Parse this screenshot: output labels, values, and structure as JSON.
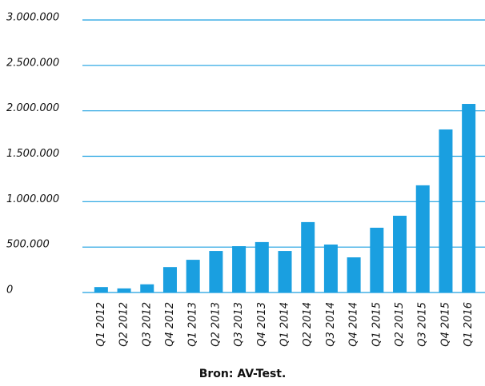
{
  "chart_data": {
    "type": "bar",
    "categories": [
      "Q1 2012",
      "Q2 2012",
      "Q3 2012",
      "Q4 2012",
      "Q1 2013",
      "Q2 2013",
      "Q3 2013",
      "Q4 2013",
      "Q1 2014",
      "Q2 2014",
      "Q3 2014",
      "Q4 2014",
      "Q1 2015",
      "Q2 2015",
      "Q3 2015",
      "Q4 2015",
      "Q1 2016"
    ],
    "values": [
      60000,
      45000,
      90000,
      280000,
      360000,
      457000,
      510000,
      555000,
      457000,
      775000,
      528000,
      387000,
      713000,
      845000,
      1180000,
      1795000,
      2076000
    ],
    "color": "#1a9fe0",
    "ylim": [
      0,
      3000000
    ],
    "yticks": [
      0,
      {
        "value": 500000,
        "label": "500.000"
      },
      {
        "value": 1000000,
        "label": "1.000.000"
      },
      {
        "value": 1500000,
        "label": "1.500.000"
      },
      {
        "value": 2000000,
        "label": "2.000.000"
      },
      {
        "value": 2500000,
        "label": "2.500.000"
      },
      {
        "value": 3000000,
        "label": "3.000.000"
      }
    ],
    "grid": true,
    "caption": "Bron: AV-Test."
  }
}
